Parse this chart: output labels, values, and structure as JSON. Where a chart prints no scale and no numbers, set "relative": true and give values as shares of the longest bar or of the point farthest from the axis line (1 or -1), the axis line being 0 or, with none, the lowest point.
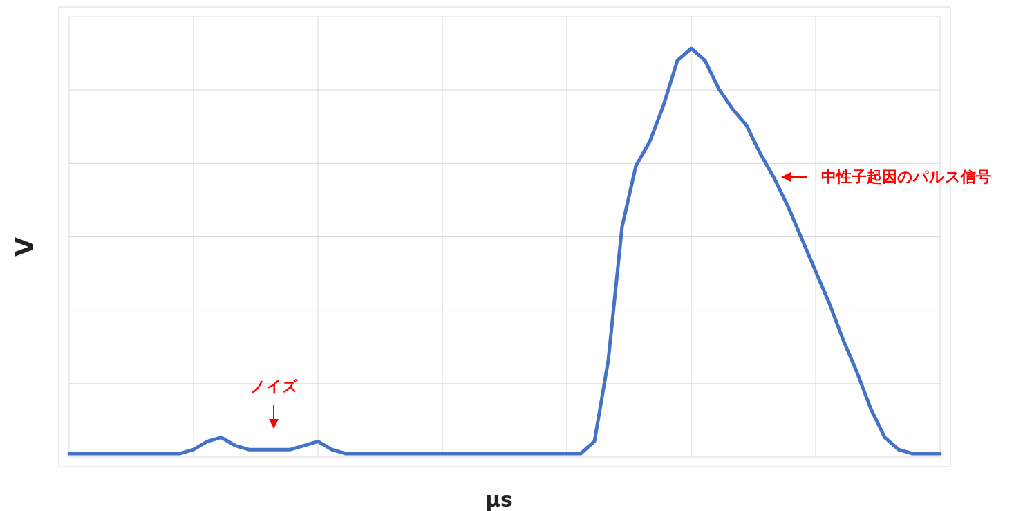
{
  "chart_data": {
    "type": "line",
    "relative": true,
    "xlabel": "μs",
    "ylabel": "V",
    "color": "#4472c4",
    "grid": true,
    "categories": [
      null,
      null,
      null,
      null,
      null,
      null,
      null,
      null,
      null,
      null,
      null,
      null,
      null,
      null,
      null,
      null,
      null,
      null,
      null,
      null,
      null,
      null,
      null,
      null,
      null,
      null,
      null,
      null,
      null,
      null,
      null,
      null,
      null,
      null,
      null,
      null,
      null,
      null,
      null,
      null,
      null,
      null,
      null,
      null,
      null,
      null,
      null,
      null,
      null,
      null,
      null,
      null,
      null,
      null,
      null,
      null,
      null,
      null,
      null,
      null,
      null,
      null,
      null,
      null
    ],
    "values": [
      0,
      0,
      0,
      0,
      0,
      0,
      0,
      0,
      0,
      0.01,
      0.03,
      0.04,
      0.02,
      0.01,
      0.01,
      0.01,
      0.01,
      0.02,
      0.03,
      0.01,
      0,
      0,
      0,
      0,
      0,
      0,
      0,
      0,
      0,
      0,
      0,
      0,
      0,
      0,
      0,
      0,
      0,
      0,
      0.03,
      0.23,
      0.56,
      0.71,
      0.77,
      0.86,
      0.97,
      1,
      0.97,
      0.9,
      0.85,
      0.81,
      0.74,
      0.68,
      0.61,
      0.53,
      0.45,
      0.37,
      0.28,
      0.2,
      0.11,
      0.04,
      0.01,
      0,
      0,
      0
    ],
    "annotations": [
      "ノイズ",
      "中性子起因のパルス信号"
    ]
  }
}
